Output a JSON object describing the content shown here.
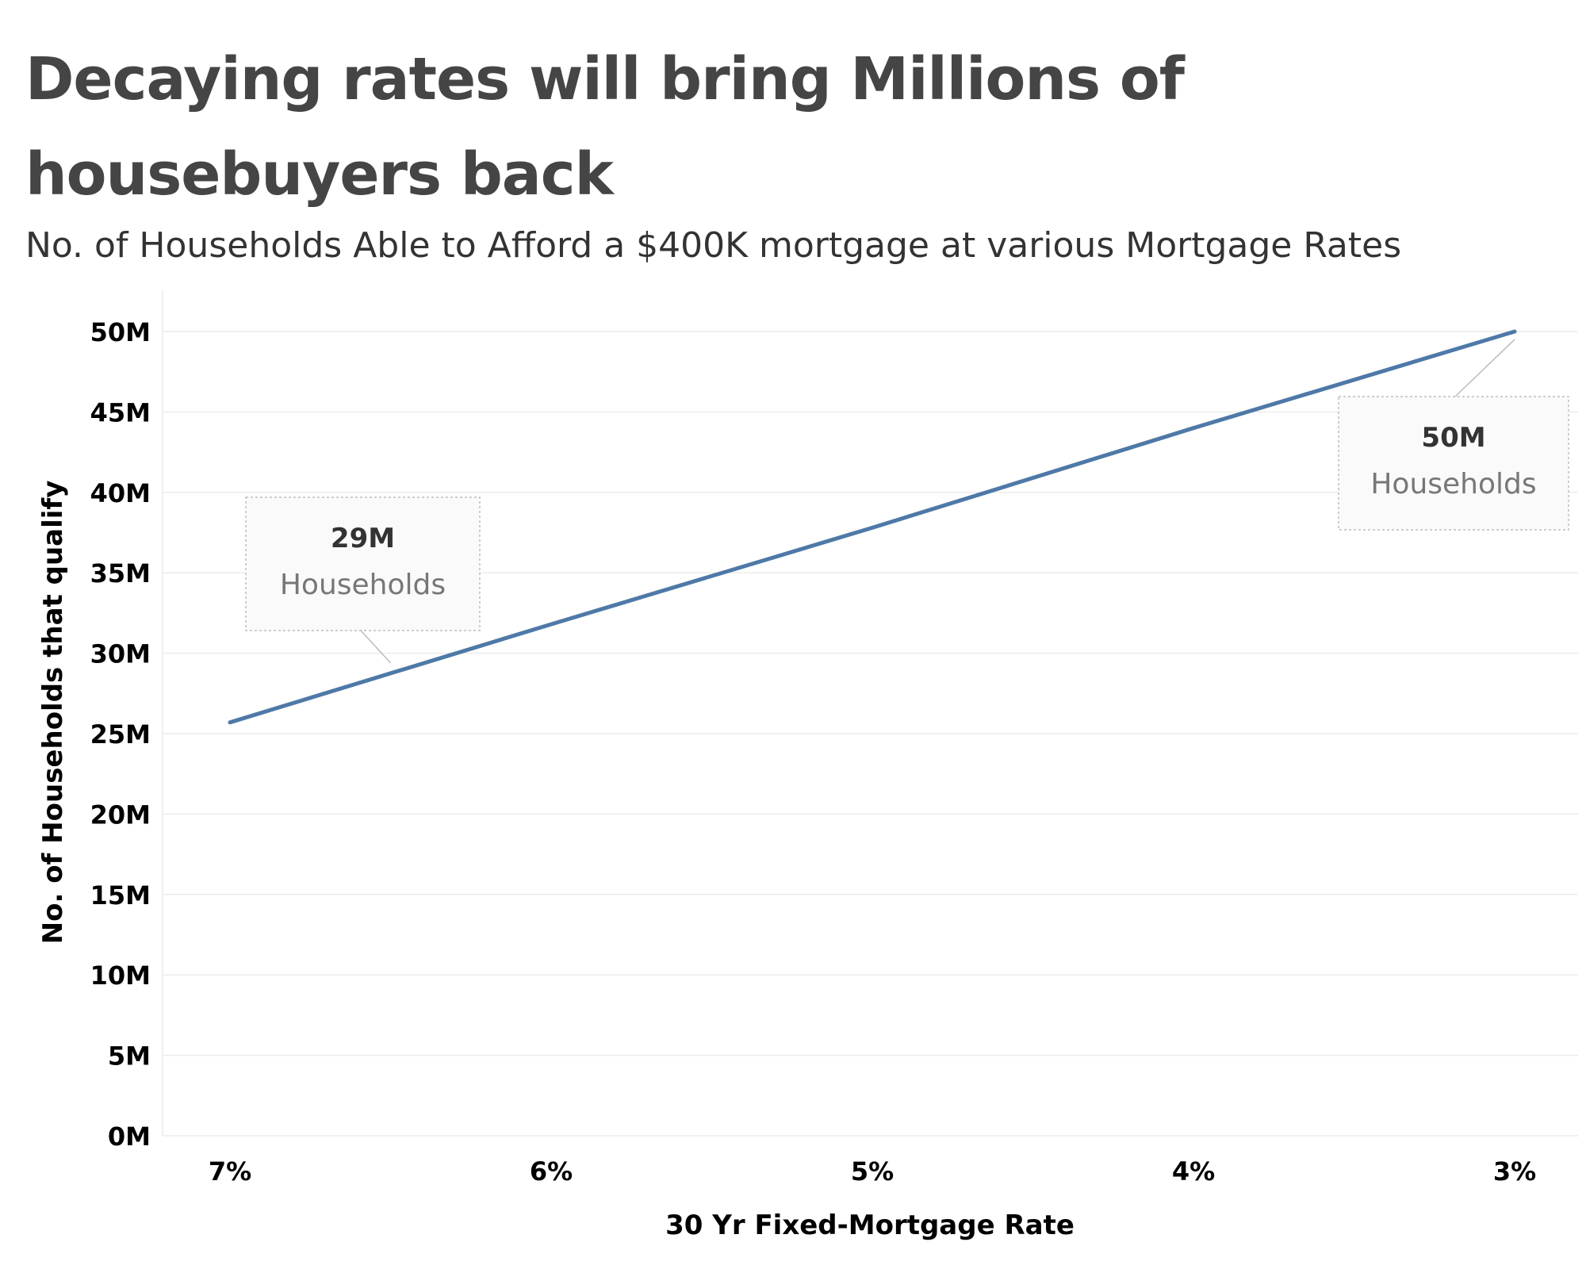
{
  "title": "Decaying rates will bring Millions of housebuyers back",
  "subtitle": "No. of Households Able to Afford a $400K mortgage at various Mortgage Rates",
  "chart_data": {
    "type": "line",
    "title": "Decaying rates will bring Millions of housebuyers back",
    "subtitle": "No. of Households Able to Afford a $400K mortgage at various Mortgage Rates",
    "xlabel": "30 Yr Fixed-Mortgage Rate",
    "ylabel": "No. of Households that qualify",
    "x_ticks": [
      "7%",
      "6%",
      "5%",
      "4%",
      "3%"
    ],
    "y_ticks": [
      "0M",
      "5M",
      "10M",
      "15M",
      "20M",
      "25M",
      "30M",
      "35M",
      "40M",
      "45M",
      "50M"
    ],
    "xlim": [
      7,
      3
    ],
    "ylim": [
      0,
      50
    ],
    "x_reversed": true,
    "grid": "horizontal",
    "series": [
      {
        "x": [
          7,
          6,
          5,
          4,
          3
        ],
        "y": [
          25.7,
          31.8,
          37.8,
          44.0,
          50.0
        ],
        "color": "#4e79a7"
      }
    ],
    "annotations": [
      {
        "x": 6.5,
        "y": 29,
        "value": "29M",
        "label": "Households"
      },
      {
        "x": 3,
        "y": 50,
        "value": "50M",
        "label": "Households"
      }
    ]
  }
}
